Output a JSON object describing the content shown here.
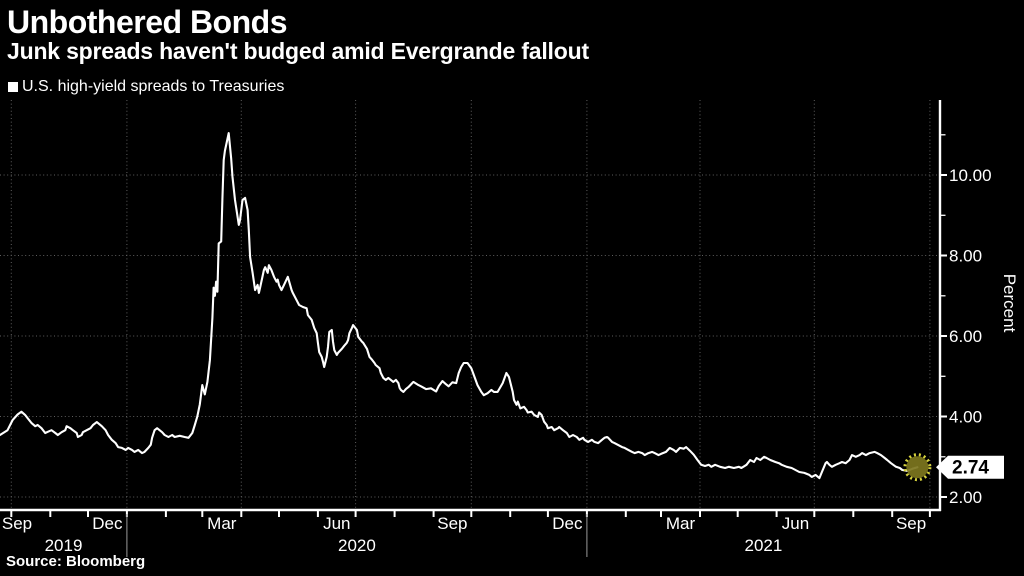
{
  "header": {
    "title": "Unbothered Bonds",
    "subtitle": "Junk spreads haven't budged amid Evergrande fallout"
  },
  "legend": {
    "marker": "white-square",
    "label": "U.S. high-yield spreads to Treasuries"
  },
  "source": "Source: Bloomberg",
  "colors": {
    "background": "#000000",
    "text": "#ffffff",
    "line": "#ffffff",
    "grid": "#5e5e5e",
    "axis": "#ffffff",
    "year_separator": "#9a9a9a",
    "marker_fill": "#7d761e",
    "marker_ring": "#d6d23c",
    "tag_bg": "#ffffff",
    "tag_text": "#000000"
  },
  "chart_data": {
    "type": "line",
    "title": "Unbothered Bonds",
    "subtitle": "Junk spreads haven't budged amid Evergrande fallout",
    "series_name": "U.S. high-yield spreads to Treasuries",
    "xlabel": "",
    "ylabel": "Percent",
    "grid": "dotted",
    "legend_position": "top-left",
    "ylim": [
      1.68,
      11.86
    ],
    "y_ticks_major": [
      2,
      4,
      6,
      8,
      10
    ],
    "y_tick_labels": [
      "2.00",
      "4.00",
      "6.00",
      "8.00",
      "10.00"
    ],
    "y_ticks_minor": [
      3,
      5,
      7,
      9,
      11
    ],
    "x_axis": {
      "start": "2019-09-22",
      "end": "2021-10-09",
      "tick_unit": "month",
      "gridlines": "quarterly",
      "month_labels": [
        "Sep",
        "Dec",
        "Mar",
        "Jun",
        "Sep",
        "Dec",
        "Mar",
        "Jun",
        "Sep"
      ],
      "year_labels": [
        "2019",
        "2020",
        "2021"
      ]
    },
    "last_point": {
      "date": "2021-09-21",
      "value": 2.74,
      "label": "2.74"
    },
    "points": [
      [
        "2019-09-22",
        3.54
      ],
      [
        "2019-09-28",
        3.66
      ],
      [
        "2019-10-02",
        3.91
      ],
      [
        "2019-10-06",
        4.05
      ],
      [
        "2019-10-09",
        4.12
      ],
      [
        "2019-10-12",
        4.04
      ],
      [
        "2019-10-14",
        3.96
      ],
      [
        "2019-10-17",
        3.84
      ],
      [
        "2019-10-20",
        3.76
      ],
      [
        "2019-10-22",
        3.79
      ],
      [
        "2019-10-25",
        3.71
      ],
      [
        "2019-10-28",
        3.59
      ],
      [
        "2019-10-30",
        3.62
      ],
      [
        "2019-11-02",
        3.66
      ],
      [
        "2019-11-05",
        3.59
      ],
      [
        "2019-11-07",
        3.54
      ],
      [
        "2019-11-10",
        3.61
      ],
      [
        "2019-11-13",
        3.66
      ],
      [
        "2019-11-14",
        3.76
      ],
      [
        "2019-11-17",
        3.71
      ],
      [
        "2019-11-19",
        3.66
      ],
      [
        "2019-11-22",
        3.59
      ],
      [
        "2019-11-23",
        3.49
      ],
      [
        "2019-11-26",
        3.54
      ],
      [
        "2019-11-27",
        3.61
      ],
      [
        "2019-11-30",
        3.66
      ],
      [
        "2019-12-03",
        3.71
      ],
      [
        "2019-12-05",
        3.79
      ],
      [
        "2019-12-08",
        3.86
      ],
      [
        "2019-12-12",
        3.76
      ],
      [
        "2019-12-15",
        3.66
      ],
      [
        "2019-12-17",
        3.54
      ],
      [
        "2019-12-20",
        3.42
      ],
      [
        "2019-12-23",
        3.34
      ],
      [
        "2019-12-25",
        3.24
      ],
      [
        "2019-12-28",
        3.22
      ],
      [
        "2019-12-31",
        3.17
      ],
      [
        "2020-01-02",
        3.22
      ],
      [
        "2020-01-05",
        3.17
      ],
      [
        "2020-01-07",
        3.12
      ],
      [
        "2020-01-10",
        3.17
      ],
      [
        "2020-01-13",
        3.09
      ],
      [
        "2020-01-15",
        3.12
      ],
      [
        "2020-01-18",
        3.22
      ],
      [
        "2020-01-20",
        3.3
      ],
      [
        "2020-01-21",
        3.47
      ],
      [
        "2020-01-23",
        3.66
      ],
      [
        "2020-01-25",
        3.71
      ],
      [
        "2020-01-29",
        3.61
      ],
      [
        "2020-01-31",
        3.54
      ],
      [
        "2020-02-03",
        3.49
      ],
      [
        "2020-02-06",
        3.54
      ],
      [
        "2020-02-08",
        3.49
      ],
      [
        "2020-02-12",
        3.52
      ],
      [
        "2020-02-16",
        3.49
      ],
      [
        "2020-02-19",
        3.47
      ],
      [
        "2020-02-22",
        3.59
      ],
      [
        "2020-02-24",
        3.79
      ],
      [
        "2020-02-26",
        4.0
      ],
      [
        "2020-02-28",
        4.3
      ],
      [
        "2020-03-01",
        4.78
      ],
      [
        "2020-03-03",
        4.55
      ],
      [
        "2020-03-05",
        4.86
      ],
      [
        "2020-03-07",
        5.4
      ],
      [
        "2020-03-09",
        6.45
      ],
      [
        "2020-03-10",
        7.2
      ],
      [
        "2020-03-11",
        7.0
      ],
      [
        "2020-03-12",
        7.35
      ],
      [
        "2020-03-13",
        7.1
      ],
      [
        "2020-03-14",
        8.3
      ],
      [
        "2020-03-16",
        8.35
      ],
      [
        "2020-03-17",
        9.4
      ],
      [
        "2020-03-18",
        10.37
      ],
      [
        "2020-03-19",
        10.6
      ],
      [
        "2020-03-22",
        11.04
      ],
      [
        "2020-03-24",
        10.4
      ],
      [
        "2020-03-25",
        9.95
      ],
      [
        "2020-03-27",
        9.38
      ],
      [
        "2020-03-30",
        8.76
      ],
      [
        "2020-03-31",
        8.88
      ],
      [
        "2020-04-02",
        9.38
      ],
      [
        "2020-04-04",
        9.43
      ],
      [
        "2020-04-06",
        9.13
      ],
      [
        "2020-04-07",
        8.63
      ],
      [
        "2020-04-08",
        7.96
      ],
      [
        "2020-04-10",
        7.57
      ],
      [
        "2020-04-12",
        7.14
      ],
      [
        "2020-04-14",
        7.27
      ],
      [
        "2020-04-15",
        7.07
      ],
      [
        "2020-04-16",
        7.2
      ],
      [
        "2020-04-19",
        7.64
      ],
      [
        "2020-04-20",
        7.71
      ],
      [
        "2020-04-22",
        7.57
      ],
      [
        "2020-04-23",
        7.76
      ],
      [
        "2020-04-25",
        7.64
      ],
      [
        "2020-04-27",
        7.47
      ],
      [
        "2020-04-29",
        7.35
      ],
      [
        "2020-04-30",
        7.4
      ],
      [
        "2020-05-01",
        7.27
      ],
      [
        "2020-05-03",
        7.14
      ],
      [
        "2020-05-05",
        7.27
      ],
      [
        "2020-05-08",
        7.47
      ],
      [
        "2020-05-11",
        7.14
      ],
      [
        "2020-05-12",
        7.07
      ],
      [
        "2020-05-15",
        6.89
      ],
      [
        "2020-05-17",
        6.77
      ],
      [
        "2020-05-20",
        6.72
      ],
      [
        "2020-05-23",
        6.69
      ],
      [
        "2020-05-24",
        6.52
      ],
      [
        "2020-05-27",
        6.4
      ],
      [
        "2020-05-29",
        6.2
      ],
      [
        "2020-05-31",
        6.07
      ],
      [
        "2020-06-01",
        5.83
      ],
      [
        "2020-06-02",
        5.6
      ],
      [
        "2020-06-04",
        5.48
      ],
      [
        "2020-06-05",
        5.36
      ],
      [
        "2020-06-06",
        5.23
      ],
      [
        "2020-06-08",
        5.48
      ],
      [
        "2020-06-09",
        5.73
      ],
      [
        "2020-06-10",
        6.1
      ],
      [
        "2020-06-12",
        6.15
      ],
      [
        "2020-06-13",
        5.86
      ],
      [
        "2020-06-14",
        5.65
      ],
      [
        "2020-06-16",
        5.53
      ],
      [
        "2020-06-17",
        5.58
      ],
      [
        "2020-06-20",
        5.68
      ],
      [
        "2020-06-22",
        5.76
      ],
      [
        "2020-06-24",
        5.83
      ],
      [
        "2020-06-25",
        5.9
      ],
      [
        "2020-06-26",
        6.07
      ],
      [
        "2020-06-28",
        6.2
      ],
      [
        "2020-06-29",
        6.27
      ],
      [
        "2020-06-30",
        6.23
      ],
      [
        "2020-07-02",
        6.15
      ],
      [
        "2020-07-03",
        5.98
      ],
      [
        "2020-07-06",
        5.86
      ],
      [
        "2020-07-07",
        5.83
      ],
      [
        "2020-07-10",
        5.68
      ],
      [
        "2020-07-12",
        5.48
      ],
      [
        "2020-07-14",
        5.41
      ],
      [
        "2020-07-16",
        5.33
      ],
      [
        "2020-07-17",
        5.28
      ],
      [
        "2020-07-20",
        5.2
      ],
      [
        "2020-07-21",
        5.08
      ],
      [
        "2020-07-23",
        4.96
      ],
      [
        "2020-07-25",
        4.91
      ],
      [
        "2020-07-27",
        4.96
      ],
      [
        "2020-07-31",
        4.86
      ],
      [
        "2020-08-02",
        4.91
      ],
      [
        "2020-08-04",
        4.83
      ],
      [
        "2020-08-05",
        4.71
      ],
      [
        "2020-08-06",
        4.66
      ],
      [
        "2020-08-08",
        4.61
      ],
      [
        "2020-08-10",
        4.68
      ],
      [
        "2020-08-12",
        4.73
      ],
      [
        "2020-08-15",
        4.83
      ],
      [
        "2020-08-16",
        4.86
      ],
      [
        "2020-08-20",
        4.78
      ],
      [
        "2020-08-22",
        4.75
      ],
      [
        "2020-08-26",
        4.68
      ],
      [
        "2020-08-30",
        4.7
      ],
      [
        "2020-09-03",
        4.62
      ],
      [
        "2020-09-05",
        4.75
      ],
      [
        "2020-09-08",
        4.88
      ],
      [
        "2020-09-11",
        4.8
      ],
      [
        "2020-09-13",
        4.75
      ],
      [
        "2020-09-16",
        4.85
      ],
      [
        "2020-09-19",
        4.83
      ],
      [
        "2020-09-21",
        5.08
      ],
      [
        "2020-09-23",
        5.23
      ],
      [
        "2020-09-25",
        5.33
      ],
      [
        "2020-09-28",
        5.33
      ],
      [
        "2020-10-01",
        5.2
      ],
      [
        "2020-10-03",
        5.03
      ],
      [
        "2020-10-06",
        4.78
      ],
      [
        "2020-10-09",
        4.61
      ],
      [
        "2020-10-11",
        4.53
      ],
      [
        "2020-10-14",
        4.58
      ],
      [
        "2020-10-17",
        4.66
      ],
      [
        "2020-10-19",
        4.61
      ],
      [
        "2020-10-22",
        4.61
      ],
      [
        "2020-10-26",
        4.83
      ],
      [
        "2020-10-29",
        5.08
      ],
      [
        "2020-10-31",
        4.98
      ],
      [
        "2020-11-03",
        4.61
      ],
      [
        "2020-11-04",
        4.41
      ],
      [
        "2020-11-06",
        4.29
      ],
      [
        "2020-11-07",
        4.37
      ],
      [
        "2020-11-09",
        4.2
      ],
      [
        "2020-11-12",
        4.24
      ],
      [
        "2020-11-14",
        4.16
      ],
      [
        "2020-11-15",
        4.1
      ],
      [
        "2020-11-18",
        4.12
      ],
      [
        "2020-11-20",
        4.04
      ],
      [
        "2020-11-23",
        3.99
      ],
      [
        "2020-11-24",
        4.1
      ],
      [
        "2020-11-26",
        4.04
      ],
      [
        "2020-11-28",
        3.87
      ],
      [
        "2020-11-30",
        3.79
      ],
      [
        "2020-12-01",
        3.71
      ],
      [
        "2020-12-04",
        3.74
      ],
      [
        "2020-12-06",
        3.66
      ],
      [
        "2020-12-09",
        3.71
      ],
      [
        "2020-12-10",
        3.74
      ],
      [
        "2020-12-13",
        3.66
      ],
      [
        "2020-12-16",
        3.59
      ],
      [
        "2020-12-18",
        3.49
      ],
      [
        "2020-12-21",
        3.54
      ],
      [
        "2020-12-24",
        3.49
      ],
      [
        "2020-12-26",
        3.42
      ],
      [
        "2020-12-29",
        3.47
      ],
      [
        "2020-12-30",
        3.42
      ],
      [
        "2021-01-02",
        3.37
      ],
      [
        "2021-01-05",
        3.42
      ],
      [
        "2021-01-07",
        3.37
      ],
      [
        "2021-01-10",
        3.34
      ],
      [
        "2021-01-13",
        3.42
      ],
      [
        "2021-01-15",
        3.47
      ],
      [
        "2021-01-17",
        3.49
      ],
      [
        "2021-01-18",
        3.47
      ],
      [
        "2021-01-21",
        3.37
      ],
      [
        "2021-01-23",
        3.34
      ],
      [
        "2021-01-26",
        3.29
      ],
      [
        "2021-01-29",
        3.24
      ],
      [
        "2021-01-31",
        3.22
      ],
      [
        "2021-02-03",
        3.17
      ],
      [
        "2021-02-06",
        3.12
      ],
      [
        "2021-02-08",
        3.09
      ],
      [
        "2021-02-11",
        3.12
      ],
      [
        "2021-02-14",
        3.09
      ],
      [
        "2021-02-16",
        3.04
      ],
      [
        "2021-02-19",
        3.09
      ],
      [
        "2021-02-22",
        3.12
      ],
      [
        "2021-02-24",
        3.09
      ],
      [
        "2021-02-27",
        3.04
      ],
      [
        "2021-03-01",
        3.07
      ],
      [
        "2021-03-05",
        3.12
      ],
      [
        "2021-03-08",
        3.22
      ],
      [
        "2021-03-11",
        3.17
      ],
      [
        "2021-03-13",
        3.12
      ],
      [
        "2021-03-16",
        3.22
      ],
      [
        "2021-03-19",
        3.2
      ],
      [
        "2021-03-21",
        3.24
      ],
      [
        "2021-03-24",
        3.15
      ],
      [
        "2021-03-27",
        3.05
      ],
      [
        "2021-03-30",
        2.92
      ],
      [
        "2021-04-02",
        2.8
      ],
      [
        "2021-04-05",
        2.77
      ],
      [
        "2021-04-08",
        2.8
      ],
      [
        "2021-04-10",
        2.75
      ],
      [
        "2021-04-13",
        2.8
      ],
      [
        "2021-04-17",
        2.75
      ],
      [
        "2021-04-21",
        2.72
      ],
      [
        "2021-04-24",
        2.75
      ],
      [
        "2021-04-28",
        2.72
      ],
      [
        "2021-05-02",
        2.75
      ],
      [
        "2021-05-04",
        2.72
      ],
      [
        "2021-05-08",
        2.8
      ],
      [
        "2021-05-11",
        2.92
      ],
      [
        "2021-05-14",
        2.87
      ],
      [
        "2021-05-16",
        2.97
      ],
      [
        "2021-05-19",
        2.92
      ],
      [
        "2021-05-22",
        3.0
      ],
      [
        "2021-05-24",
        2.97
      ],
      [
        "2021-05-27",
        2.92
      ],
      [
        "2021-05-31",
        2.87
      ],
      [
        "2021-06-03",
        2.84
      ],
      [
        "2021-06-05",
        2.8
      ],
      [
        "2021-06-09",
        2.75
      ],
      [
        "2021-06-13",
        2.72
      ],
      [
        "2021-06-16",
        2.67
      ],
      [
        "2021-06-19",
        2.62
      ],
      [
        "2021-06-23",
        2.6
      ],
      [
        "2021-06-27",
        2.55
      ],
      [
        "2021-06-29",
        2.5
      ],
      [
        "2021-07-02",
        2.55
      ],
      [
        "2021-07-05",
        2.47
      ],
      [
        "2021-07-07",
        2.62
      ],
      [
        "2021-07-10",
        2.84
      ],
      [
        "2021-07-11",
        2.87
      ],
      [
        "2021-07-13",
        2.8
      ],
      [
        "2021-07-15",
        2.75
      ],
      [
        "2021-07-18",
        2.8
      ],
      [
        "2021-07-21",
        2.84
      ],
      [
        "2021-07-23",
        2.87
      ],
      [
        "2021-07-26",
        2.84
      ],
      [
        "2021-07-29",
        2.92
      ],
      [
        "2021-07-31",
        3.04
      ],
      [
        "2021-08-03",
        3.0
      ],
      [
        "2021-08-06",
        3.04
      ],
      [
        "2021-08-08",
        3.09
      ],
      [
        "2021-08-11",
        3.04
      ],
      [
        "2021-08-14",
        3.09
      ],
      [
        "2021-08-18",
        3.12
      ],
      [
        "2021-08-20",
        3.09
      ],
      [
        "2021-08-23",
        3.04
      ],
      [
        "2021-08-26",
        2.97
      ],
      [
        "2021-08-28",
        2.92
      ],
      [
        "2021-08-31",
        2.84
      ],
      [
        "2021-09-04",
        2.75
      ],
      [
        "2021-09-07",
        2.72
      ],
      [
        "2021-09-09",
        2.67
      ],
      [
        "2021-09-13",
        2.65
      ],
      [
        "2021-09-17",
        2.7
      ],
      [
        "2021-09-21",
        2.74
      ]
    ]
  }
}
